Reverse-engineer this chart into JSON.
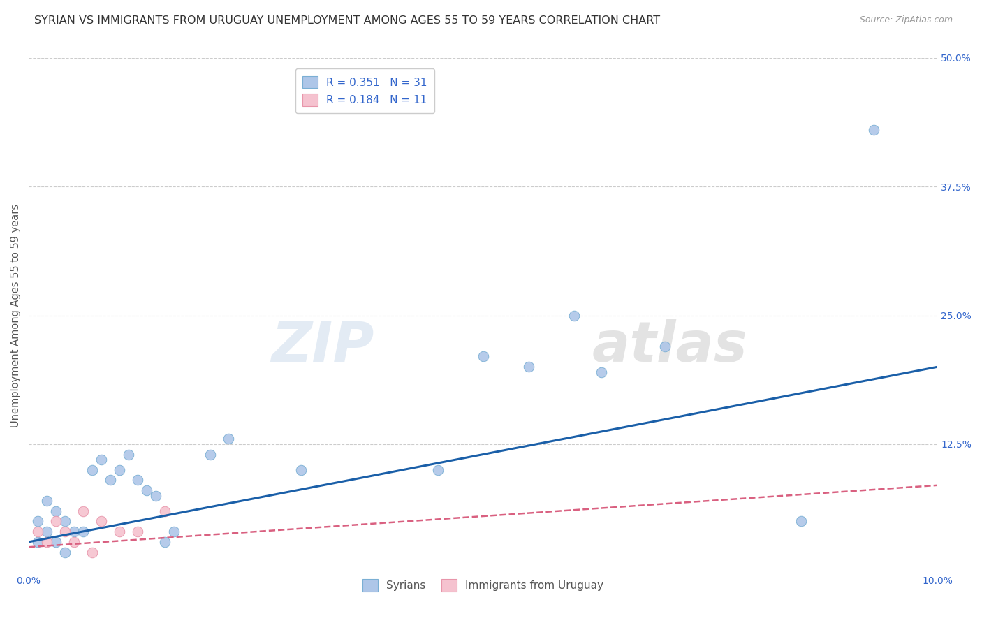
{
  "title": "SYRIAN VS IMMIGRANTS FROM URUGUAY UNEMPLOYMENT AMONG AGES 55 TO 59 YEARS CORRELATION CHART",
  "source": "Source: ZipAtlas.com",
  "ylabel": "Unemployment Among Ages 55 to 59 years",
  "xlim": [
    0.0,
    0.1
  ],
  "ylim": [
    0.0,
    0.5
  ],
  "xtick_labels": [
    "0.0%",
    "10.0%"
  ],
  "xtick_positions": [
    0.0,
    0.1
  ],
  "ytick_labels": [
    "12.5%",
    "25.0%",
    "37.5%",
    "50.0%"
  ],
  "ytick_positions": [
    0.125,
    0.25,
    0.375,
    0.5
  ],
  "background_color": "#ffffff",
  "grid_color": "#cccccc",
  "watermark_zip": "ZIP",
  "watermark_atlas": "atlas",
  "syrian_color": "#aec6e8",
  "syrian_edge_color": "#7aafd4",
  "uruguay_color": "#f5c2cf",
  "uruguay_edge_color": "#e895aa",
  "syrian_line_color": "#1a5fa8",
  "uruguay_line_color": "#d96080",
  "legend_syrian_label": "R = 0.351   N = 31",
  "legend_uruguay_label": "R = 0.184   N = 11",
  "legend_bottom_syrian": "Syrians",
  "legend_bottom_uruguay": "Immigrants from Uruguay",
  "syrians_x": [
    0.001,
    0.001,
    0.002,
    0.002,
    0.003,
    0.003,
    0.004,
    0.004,
    0.005,
    0.006,
    0.007,
    0.008,
    0.009,
    0.01,
    0.011,
    0.012,
    0.013,
    0.014,
    0.015,
    0.016,
    0.02,
    0.022,
    0.03,
    0.045,
    0.05,
    0.055,
    0.06,
    0.063,
    0.07,
    0.085,
    0.093
  ],
  "syrians_y": [
    0.03,
    0.05,
    0.04,
    0.07,
    0.06,
    0.03,
    0.05,
    0.02,
    0.04,
    0.04,
    0.1,
    0.11,
    0.09,
    0.1,
    0.115,
    0.09,
    0.08,
    0.075,
    0.03,
    0.04,
    0.115,
    0.13,
    0.1,
    0.1,
    0.21,
    0.2,
    0.25,
    0.195,
    0.22,
    0.05,
    0.43
  ],
  "uruguay_x": [
    0.001,
    0.002,
    0.003,
    0.004,
    0.005,
    0.006,
    0.007,
    0.008,
    0.01,
    0.012,
    0.015
  ],
  "uruguay_y": [
    0.04,
    0.03,
    0.05,
    0.04,
    0.03,
    0.06,
    0.02,
    0.05,
    0.04,
    0.04,
    0.06
  ],
  "marker_size": 110,
  "title_fontsize": 11.5,
  "axis_fontsize": 10.5,
  "tick_fontsize": 10,
  "label_color_blue": "#3366cc",
  "label_color_dark": "#444444",
  "label_color_axis": "#555555"
}
